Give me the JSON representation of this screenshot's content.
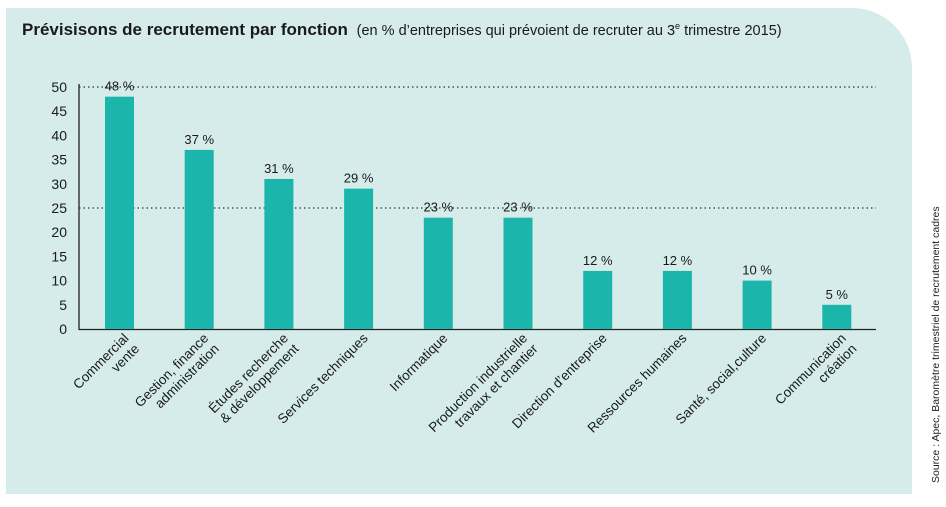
{
  "header": {
    "title": "Prévisisons de recrutement par fonction",
    "subtitle_pre": "(en % d’entreprises qui prévoient de recruter au 3",
    "subtitle_sup": "e",
    "subtitle_post": " trimestre 2015)"
  },
  "source": "Source : Apec, Baromètre trimestriel de recrutement cadres",
  "chart_data": {
    "type": "bar",
    "categories": [
      [
        "Commercial",
        "vente"
      ],
      [
        "Gestion, finance",
        "administration"
      ],
      [
        "Études recherche",
        "& développement"
      ],
      [
        "Services techniques"
      ],
      [
        "Informatique"
      ],
      [
        "Production industrielle",
        "travaux et chantier"
      ],
      [
        "Direction d’entreprise"
      ],
      [
        "Ressources humaines"
      ],
      [
        "Santé, social,culture"
      ],
      [
        "Communication",
        "création"
      ]
    ],
    "values": [
      48,
      37,
      31,
      29,
      23,
      23,
      12,
      12,
      10,
      5
    ],
    "value_labels": [
      "48 %",
      "37 %",
      "31 %",
      "29 %",
      "23 %",
      "23 %",
      "12 %",
      "12 %",
      "10 %",
      "5 %"
    ],
    "yticks": [
      "0",
      "5",
      "10",
      "15",
      "20",
      "25",
      "30",
      "35",
      "40",
      "45",
      "50"
    ],
    "ylim": [
      0,
      50
    ],
    "reference_lines": [
      25,
      50
    ],
    "bar_color": "#1bb5ab",
    "grid": false
  }
}
